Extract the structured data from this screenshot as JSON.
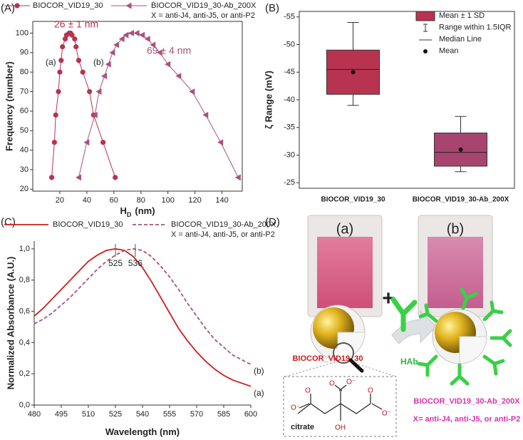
{
  "chart_data": [
    {
      "type": "line",
      "panel": "(A)",
      "xlabel": "H",
      "xlabel_sub": "D",
      "xlabel_unit": "(nm)",
      "ylabel": "Frequency (number)",
      "legend_note": "X = anti-J4, anti-J5, or anti-P2",
      "annotations": [
        "26 ± 1 nm",
        "69 ± 4 nm"
      ],
      "xlim": [
        0,
        155
      ],
      "xticks": [
        20,
        40,
        60,
        80,
        100,
        120,
        140
      ],
      "ylim": [
        19,
        106
      ],
      "yticks": [
        20,
        30,
        40,
        50,
        60,
        70,
        80,
        90,
        100
      ],
      "series": [
        {
          "name": "BIOCOR_VID19_30",
          "label": "(a)",
          "color": "#b8334f",
          "marker": "circle",
          "x": [
            14,
            16,
            17,
            19,
            20,
            21,
            22,
            24,
            25,
            27,
            28,
            29,
            31,
            32,
            34,
            37,
            42,
            45,
            52,
            61
          ],
          "values": [
            26,
            44,
            58,
            70,
            80,
            86,
            93,
            97,
            99,
            100,
            100,
            99,
            97,
            93,
            86,
            80,
            70,
            58,
            44,
            26
          ]
        },
        {
          "name": "BIOCOR_VID19_30-Ab_200X",
          "label": "(b)",
          "color": "#a8527f",
          "marker": "triangle-left",
          "x": [
            34,
            40,
            46,
            49,
            53,
            56,
            59,
            62,
            66,
            69,
            73,
            77,
            81,
            85,
            89,
            94,
            100,
            108,
            118,
            128,
            139,
            152
          ],
          "values": [
            26,
            44,
            58,
            70,
            78,
            84,
            90,
            94,
            97,
            99,
            100,
            100,
            99,
            97,
            94,
            90,
            84,
            78,
            70,
            58,
            44,
            26
          ]
        }
      ]
    },
    {
      "type": "box",
      "panel": "(B)",
      "ylabel": "ζ Range (mV)",
      "categories": [
        "BIOCOR_VID19_30",
        "BIOCOR_VID19_30-Ab_200X"
      ],
      "ylim": [
        -56,
        -24
      ],
      "y_inverted": true,
      "yticks": [
        -55,
        -50,
        -45,
        -40,
        -35,
        -30,
        -25
      ],
      "legend": [
        "Mean ± 1 SD",
        "Range within 1.5IQR",
        "Median Line",
        "Mean"
      ],
      "boxes": [
        {
          "color": "#b8334f",
          "whisker_low": -39,
          "box_low": -41,
          "median": -45.5,
          "mean": -45,
          "box_high": -49,
          "whisker_high": -54
        },
        {
          "color": "#a8456f",
          "whisker_low": -27,
          "box_low": -28,
          "median": -30.5,
          "mean": -31,
          "box_high": -34,
          "whisker_high": -37
        }
      ]
    },
    {
      "type": "line",
      "panel": "(C)",
      "xlabel": "Wavelength (nm)",
      "ylabel": "Normalized Absorbance (A.U.)",
      "legend_note": "X = anti-J4, anti-J5, or anti-P2",
      "peak_labels": [
        525,
        536
      ],
      "xlim": [
        480,
        600
      ],
      "xticks": [
        480,
        495,
        510,
        525,
        540,
        555,
        570,
        585,
        600
      ],
      "ylim": [
        0,
        1.05
      ],
      "yticks": [
        {
          "value": 0,
          "label": "0,0"
        },
        {
          "value": 0.2,
          "label": "0,2"
        },
        {
          "value": 0.4,
          "label": "0,4"
        },
        {
          "value": 0.6,
          "label": "0,6"
        },
        {
          "value": 0.8,
          "label": "0,8"
        },
        {
          "value": 1,
          "label": "1,0"
        }
      ],
      "x": [
        480,
        485,
        490,
        495,
        500,
        505,
        510,
        515,
        520,
        525,
        530,
        535,
        540,
        545,
        550,
        555,
        560,
        565,
        570,
        575,
        580,
        585,
        590,
        595,
        600
      ],
      "series": [
        {
          "name": "BIOCOR_VID19_30",
          "label": "(a)",
          "color": "#cc1f1f",
          "dash": false,
          "values": [
            0.57,
            0.62,
            0.68,
            0.74,
            0.8,
            0.86,
            0.92,
            0.96,
            0.99,
            1.0,
            0.99,
            0.95,
            0.88,
            0.79,
            0.69,
            0.59,
            0.49,
            0.41,
            0.34,
            0.28,
            0.23,
            0.19,
            0.16,
            0.14,
            0.12
          ]
        },
        {
          "name": "BIOCOR_VID19_30-Ab_200X",
          "label": "(b)",
          "color": "#a8527f",
          "dash": true,
          "values": [
            0.52,
            0.55,
            0.59,
            0.64,
            0.69,
            0.75,
            0.81,
            0.87,
            0.92,
            0.96,
            0.99,
            1.0,
            0.99,
            0.95,
            0.89,
            0.82,
            0.74,
            0.65,
            0.57,
            0.49,
            0.42,
            0.37,
            0.32,
            0.29,
            0.26
          ]
        }
      ]
    }
  ],
  "illustration": {
    "panel": "(D)",
    "cuvette_a": "(a)",
    "cuvette_b": "(b)",
    "plus": "+",
    "hab": "HAb",
    "np_name": "BIOCOR_VID19_30",
    "np_ab_name": "BIOCOR_VID19_30-Ab_200X",
    "np_ab_note": "X= anti-J4, anti-J5, or anti-P2",
    "citrate": "citrate",
    "chem": [
      "O",
      "O⁻",
      "O",
      "O⁻",
      "O",
      "O⁻",
      "OH"
    ]
  }
}
